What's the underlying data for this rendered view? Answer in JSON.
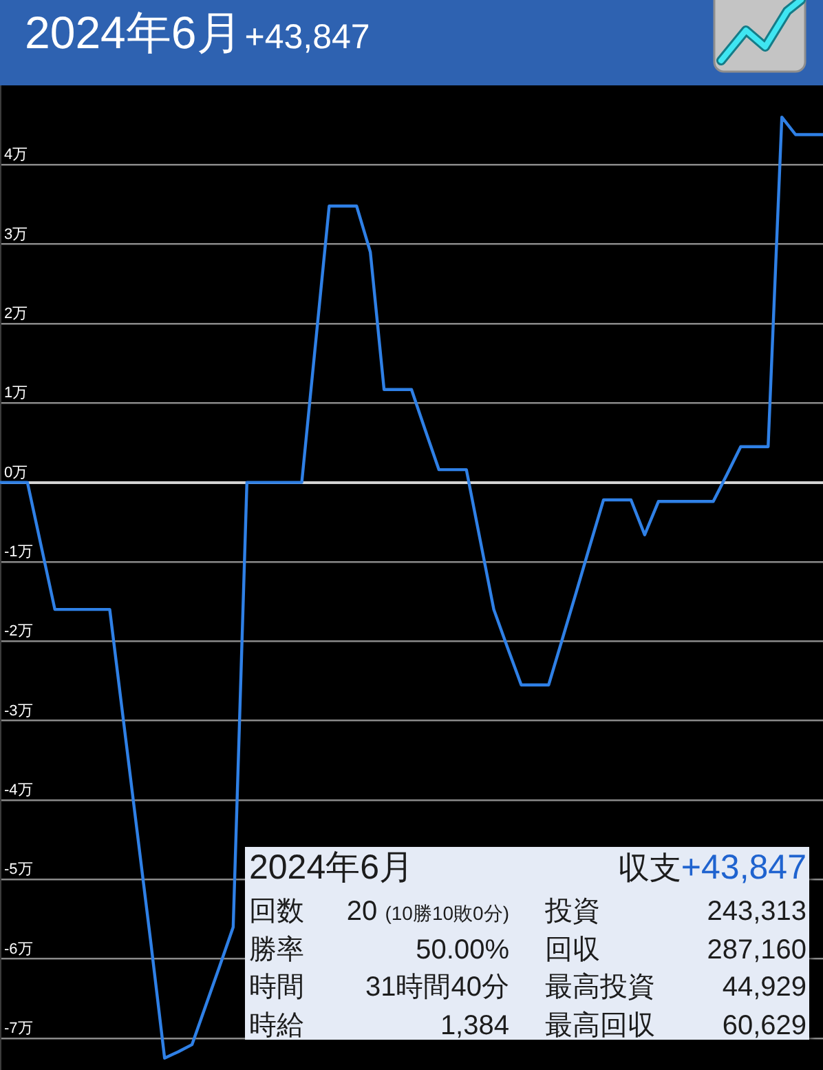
{
  "chart_data": [
    {
      "type": "line",
      "title": "2024年6月",
      "subtitle": "+43,847",
      "categories": [
        null,
        null,
        null,
        null,
        null,
        null,
        null,
        null,
        null,
        null,
        null,
        null,
        null,
        null,
        null,
        null,
        null,
        null,
        null,
        null,
        null,
        null,
        null,
        null,
        null,
        null,
        null,
        null,
        null,
        null,
        null,
        null,
        null,
        null,
        null,
        null,
        null,
        null,
        null,
        null,
        null,
        null,
        null,
        null,
        null,
        null,
        null,
        null,
        null,
        null,
        null,
        null,
        null,
        null,
        null,
        null,
        null,
        null,
        null,
        null,
        null
      ],
      "series": [
        {
          "color": "#2f80e6",
          "values": [
            0,
            0,
            0,
            -0.8,
            -1.6,
            -1.6,
            -1.6,
            -1.6,
            -1.6,
            -3.0,
            -4.4,
            -5.8,
            -7.25,
            -7.17,
            -7.08,
            -6.59,
            -6.1,
            -5.6,
            0,
            0,
            0,
            0,
            0,
            1.74,
            3.48,
            3.48,
            3.48,
            2.9,
            1.17,
            1.17,
            1.17,
            0.66,
            0.16,
            0.16,
            0.16,
            -0.72,
            -1.6,
            -2.08,
            -2.55,
            -2.55,
            -2.55,
            -1.97,
            -1.39,
            -0.8,
            -0.22,
            -0.22,
            -0.22,
            -0.66,
            -0.24,
            -0.24,
            -0.24,
            -0.24,
            -0.24,
            0.1,
            0.45,
            0.45,
            0.45,
            4.6,
            4.38,
            4.38,
            4.38
          ]
        }
      ],
      "ylim": [
        -7.4,
        5.0
      ],
      "yticks": [
        {
          "value": 4,
          "label": "4万"
        },
        {
          "value": 3,
          "label": "3万"
        },
        {
          "value": 2,
          "label": "2万"
        },
        {
          "value": 1,
          "label": "1万"
        },
        {
          "value": 0,
          "label": "0万"
        },
        {
          "value": -1,
          "label": "-1万"
        },
        {
          "value": -2,
          "label": "-2万"
        },
        {
          "value": -3,
          "label": "-3万"
        },
        {
          "value": -4,
          "label": "-4万"
        },
        {
          "value": -5,
          "label": "-5万"
        },
        {
          "value": -6,
          "label": "-6万"
        },
        {
          "value": -7,
          "label": "-7万"
        }
      ],
      "grid": "y",
      "tick_labels": "y"
    },
    {
      "type": "other",
      "title": "2024年6月",
      "annotations": [
        "収支",
        "+43,847",
        "回数",
        "20 (10勝10敗0分)",
        "投資",
        "243,313",
        "勝率",
        "50.00%",
        "回収",
        "287,160",
        "時間",
        "31時間40分",
        "最高投資",
        "44,929",
        "時給",
        "1,384",
        "最高回収",
        "60,629"
      ]
    }
  ]
}
